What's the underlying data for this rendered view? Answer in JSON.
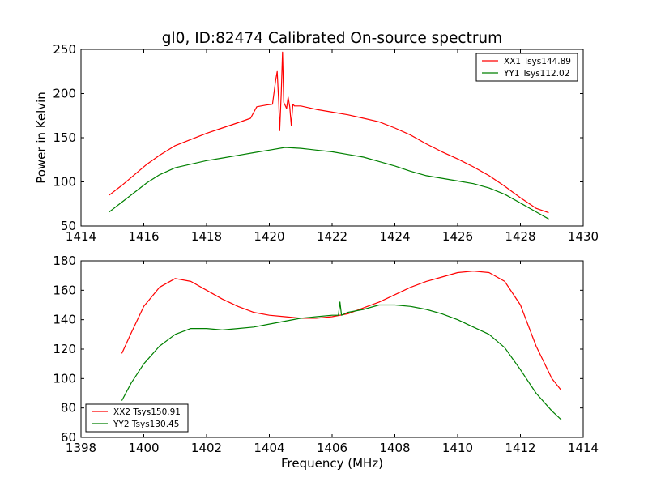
{
  "figure_title": "gl0, ID:82474 Calibrated On-source spectrum",
  "chart_data": [
    {
      "type": "line",
      "title": "gl0, ID:82474 Calibrated On-source spectrum",
      "xlabel": "",
      "ylabel": "Power in Kelvin",
      "xlim": [
        1414,
        1430
      ],
      "ylim": [
        50,
        250
      ],
      "xticks": [
        1414,
        1416,
        1418,
        1420,
        1422,
        1424,
        1426,
        1428,
        1430
      ],
      "yticks": [
        50,
        100,
        150,
        200,
        250
      ],
      "legend_position": "top-right",
      "grid": false,
      "series": [
        {
          "name": "XX1 Tsys144.89",
          "color": "#ff0000",
          "x": [
            1414.9,
            1415.3,
            1415.7,
            1416.1,
            1416.5,
            1417.0,
            1417.5,
            1418.0,
            1418.5,
            1419.0,
            1419.4,
            1419.6,
            1419.9,
            1420.1,
            1420.2,
            1420.25,
            1420.3,
            1420.33,
            1420.38,
            1420.42,
            1420.46,
            1420.5,
            1420.55,
            1420.6,
            1420.65,
            1420.7,
            1420.75,
            1420.8,
            1421.0,
            1421.5,
            1422.0,
            1422.5,
            1423.0,
            1423.5,
            1424.0,
            1424.5,
            1425.0,
            1425.5,
            1426.0,
            1426.5,
            1427.0,
            1427.5,
            1428.0,
            1428.5,
            1428.9
          ],
          "y": [
            85,
            96,
            108,
            120,
            130,
            141,
            148,
            155,
            161,
            167,
            172,
            185,
            187,
            188,
            215,
            225,
            190,
            158,
            200,
            247,
            190,
            187,
            183,
            196,
            185,
            164,
            188,
            186,
            186,
            182,
            179,
            176,
            172,
            168,
            161,
            153,
            143,
            134,
            126,
            117,
            107,
            95,
            82,
            70,
            65
          ]
        },
        {
          "name": "YY1 Tsys112.02",
          "color": "#008000",
          "x": [
            1414.9,
            1415.3,
            1415.7,
            1416.1,
            1416.5,
            1417.0,
            1417.5,
            1418.0,
            1418.5,
            1419.0,
            1419.5,
            1420.0,
            1420.5,
            1421.0,
            1421.5,
            1422.0,
            1422.5,
            1423.0,
            1423.5,
            1424.0,
            1424.5,
            1425.0,
            1425.5,
            1426.0,
            1426.5,
            1427.0,
            1427.5,
            1428.0,
            1428.5,
            1428.9
          ],
          "y": [
            66,
            77,
            88,
            99,
            108,
            116,
            120,
            124,
            127,
            130,
            133,
            136,
            139,
            138,
            136,
            134,
            131,
            128,
            123,
            118,
            112,
            107,
            104,
            101,
            98,
            93,
            86,
            76,
            66,
            58
          ]
        }
      ]
    },
    {
      "type": "line",
      "title": "",
      "xlabel": "Frequency (MHz)",
      "ylabel": "",
      "xlim": [
        1398,
        1414
      ],
      "ylim": [
        60,
        180
      ],
      "xticks": [
        1398,
        1400,
        1402,
        1404,
        1406,
        1408,
        1410,
        1412,
        1414
      ],
      "yticks": [
        60,
        80,
        100,
        120,
        140,
        160,
        180
      ],
      "legend_position": "bottom-left",
      "grid": false,
      "series": [
        {
          "name": "XX2 Tsys150.91",
          "color": "#ff0000",
          "x": [
            1399.3,
            1399.6,
            1400.0,
            1400.5,
            1401.0,
            1401.5,
            1402.0,
            1402.5,
            1403.0,
            1403.5,
            1404.0,
            1404.5,
            1405.0,
            1405.5,
            1406.0,
            1406.5,
            1407.0,
            1407.5,
            1408.0,
            1408.5,
            1409.0,
            1409.5,
            1410.0,
            1410.5,
            1411.0,
            1411.5,
            1412.0,
            1412.5,
            1413.0,
            1413.3
          ],
          "y": [
            117,
            131,
            149,
            162,
            168,
            166,
            160,
            154,
            149,
            145,
            143,
            142,
            141,
            141,
            142,
            144,
            148,
            152,
            157,
            162,
            166,
            169,
            172,
            173,
            172,
            166,
            150,
            122,
            100,
            92
          ]
        },
        {
          "name": "YY2 Tsys130.45",
          "color": "#008000",
          "x": [
            1399.3,
            1399.6,
            1400.0,
            1400.5,
            1401.0,
            1401.5,
            1402.0,
            1402.5,
            1403.0,
            1403.5,
            1404.0,
            1404.5,
            1405.0,
            1405.5,
            1406.0,
            1406.2,
            1406.25,
            1406.3,
            1406.5,
            1407.0,
            1407.5,
            1408.0,
            1408.5,
            1409.0,
            1409.5,
            1410.0,
            1410.5,
            1411.0,
            1411.5,
            1412.0,
            1412.5,
            1413.0,
            1413.3
          ],
          "y": [
            85,
            97,
            110,
            122,
            130,
            134,
            134,
            133,
            134,
            135,
            137,
            139,
            141,
            142,
            143,
            143,
            152,
            143,
            145,
            147,
            150,
            150,
            149,
            147,
            144,
            140,
            135,
            130,
            121,
            106,
            90,
            78,
            72
          ]
        }
      ]
    }
  ]
}
